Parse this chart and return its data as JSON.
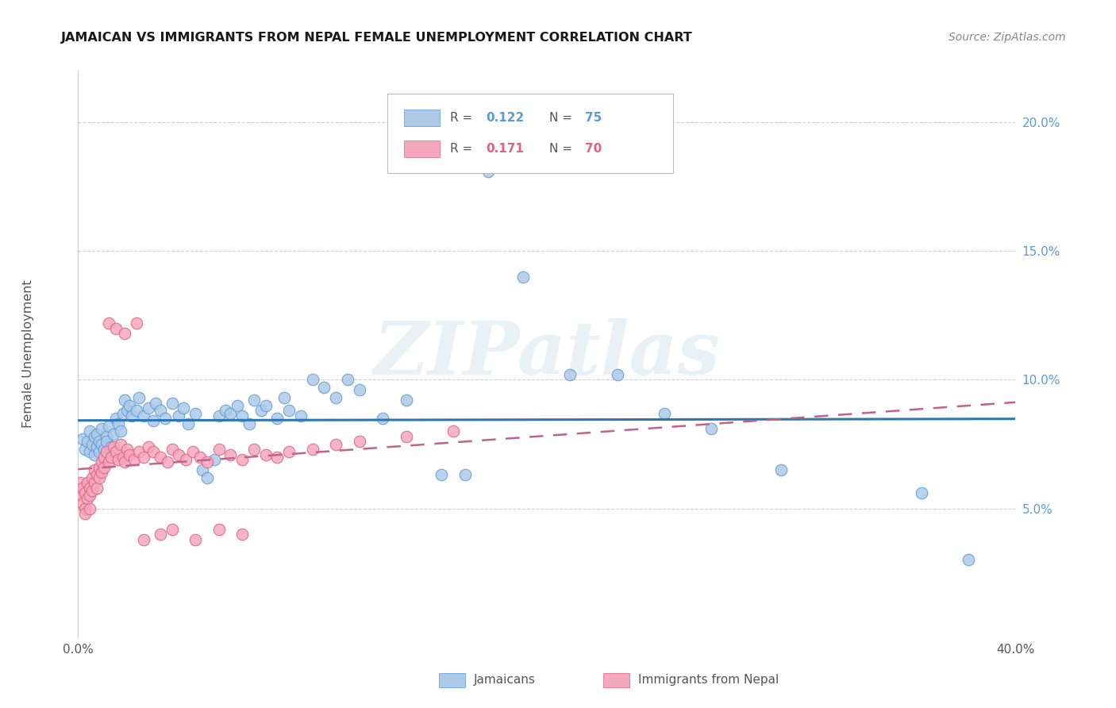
{
  "title": "JAMAICAN VS IMMIGRANTS FROM NEPAL FEMALE UNEMPLOYMENT CORRELATION CHART",
  "source": "Source: ZipAtlas.com",
  "ylabel": "Female Unemployment",
  "legend1_R": "0.122",
  "legend1_N": "75",
  "legend2_R": "0.171",
  "legend2_N": "70",
  "blue_scatter_color": "#aec9e8",
  "blue_edge_color": "#5b9bd5",
  "pink_scatter_color": "#f4a7be",
  "pink_edge_color": "#e06080",
  "blue_line_color": "#2e75b6",
  "pink_line_color": "#c0628a",
  "xlim": [
    0.0,
    0.4
  ],
  "ylim": [
    0.0,
    0.22
  ],
  "xticks": [
    0.0,
    0.1,
    0.2,
    0.3,
    0.4
  ],
  "xtick_labels": [
    "0.0%",
    "",
    "",
    "",
    "40.0%"
  ],
  "yticks": [
    0.05,
    0.1,
    0.15,
    0.2
  ],
  "ytick_labels": [
    "5.0%",
    "10.0%",
    "15.0%",
    "20.0%"
  ],
  "jamaicans_x": [
    0.002,
    0.003,
    0.004,
    0.005,
    0.005,
    0.006,
    0.007,
    0.007,
    0.008,
    0.008,
    0.009,
    0.009,
    0.01,
    0.01,
    0.011,
    0.012,
    0.012,
    0.013,
    0.014,
    0.015,
    0.016,
    0.017,
    0.018,
    0.019,
    0.02,
    0.021,
    0.022,
    0.023,
    0.025,
    0.026,
    0.028,
    0.03,
    0.032,
    0.033,
    0.035,
    0.037,
    0.04,
    0.043,
    0.045,
    0.047,
    0.05,
    0.053,
    0.055,
    0.058,
    0.06,
    0.063,
    0.065,
    0.068,
    0.07,
    0.073,
    0.075,
    0.078,
    0.08,
    0.085,
    0.088,
    0.09,
    0.095,
    0.1,
    0.105,
    0.11,
    0.115,
    0.12,
    0.13,
    0.14,
    0.155,
    0.165,
    0.175,
    0.19,
    0.21,
    0.23,
    0.25,
    0.27,
    0.3,
    0.36,
    0.38
  ],
  "jamaicans_y": [
    0.077,
    0.073,
    0.076,
    0.072,
    0.08,
    0.075,
    0.071,
    0.078,
    0.074,
    0.079,
    0.076,
    0.072,
    0.075,
    0.081,
    0.073,
    0.078,
    0.076,
    0.082,
    0.074,
    0.079,
    0.085,
    0.083,
    0.08,
    0.087,
    0.092,
    0.088,
    0.09,
    0.086,
    0.088,
    0.093,
    0.086,
    0.089,
    0.084,
    0.091,
    0.088,
    0.085,
    0.091,
    0.086,
    0.089,
    0.083,
    0.087,
    0.065,
    0.062,
    0.069,
    0.086,
    0.088,
    0.087,
    0.09,
    0.086,
    0.083,
    0.092,
    0.088,
    0.09,
    0.085,
    0.093,
    0.088,
    0.086,
    0.1,
    0.097,
    0.093,
    0.1,
    0.096,
    0.085,
    0.092,
    0.063,
    0.063,
    0.181,
    0.14,
    0.102,
    0.102,
    0.087,
    0.081,
    0.065,
    0.056,
    0.03
  ],
  "nepal_x": [
    0.001,
    0.001,
    0.002,
    0.002,
    0.003,
    0.003,
    0.003,
    0.004,
    0.004,
    0.005,
    0.005,
    0.005,
    0.006,
    0.006,
    0.007,
    0.007,
    0.008,
    0.008,
    0.009,
    0.009,
    0.01,
    0.01,
    0.011,
    0.011,
    0.012,
    0.013,
    0.014,
    0.015,
    0.016,
    0.017,
    0.018,
    0.019,
    0.02,
    0.021,
    0.022,
    0.024,
    0.026,
    0.028,
    0.03,
    0.032,
    0.035,
    0.038,
    0.04,
    0.043,
    0.046,
    0.049,
    0.052,
    0.055,
    0.06,
    0.065,
    0.07,
    0.075,
    0.08,
    0.085,
    0.09,
    0.1,
    0.11,
    0.12,
    0.14,
    0.16,
    0.013,
    0.016,
    0.02,
    0.025,
    0.028,
    0.035,
    0.04,
    0.05,
    0.06,
    0.07
  ],
  "nepal_y": [
    0.06,
    0.055,
    0.058,
    0.052,
    0.056,
    0.05,
    0.048,
    0.06,
    0.054,
    0.058,
    0.055,
    0.05,
    0.062,
    0.057,
    0.065,
    0.06,
    0.063,
    0.058,
    0.066,
    0.062,
    0.068,
    0.064,
    0.07,
    0.066,
    0.072,
    0.068,
    0.07,
    0.074,
    0.072,
    0.069,
    0.075,
    0.07,
    0.068,
    0.073,
    0.071,
    0.069,
    0.072,
    0.07,
    0.074,
    0.072,
    0.07,
    0.068,
    0.073,
    0.071,
    0.069,
    0.072,
    0.07,
    0.068,
    0.073,
    0.071,
    0.069,
    0.073,
    0.071,
    0.07,
    0.072,
    0.073,
    0.075,
    0.076,
    0.078,
    0.08,
    0.122,
    0.12,
    0.118,
    0.122,
    0.038,
    0.04,
    0.042,
    0.038,
    0.042,
    0.04
  ]
}
